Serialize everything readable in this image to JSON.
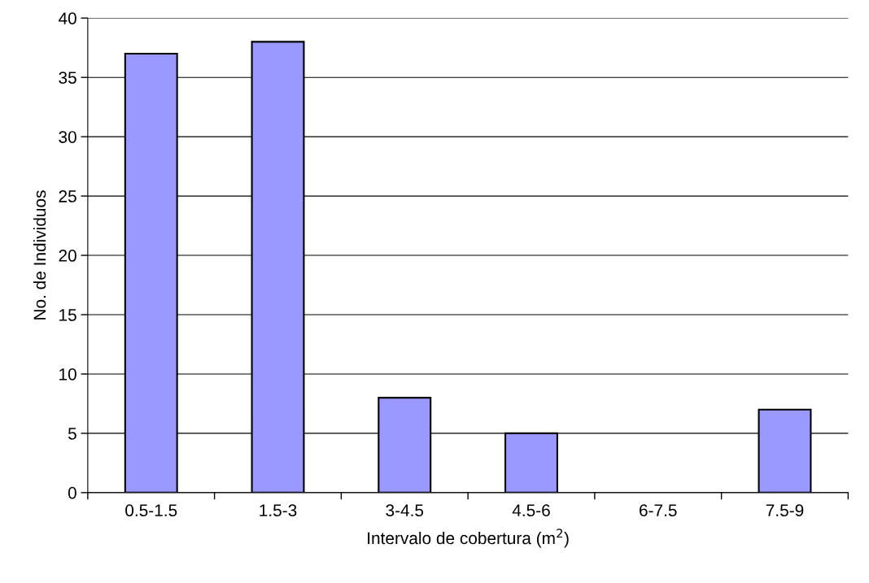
{
  "chart_data": {
    "type": "bar",
    "xlabel": "Intervalo de cobertura (m$^{2}$)",
    "ylabel": "No. de Individuos",
    "categories": [
      "0.5-1.5",
      "1.5-3",
      "3-4.5",
      "4.5-6",
      "6-7.5",
      "7.5-9"
    ],
    "values": [
      37,
      38,
      8,
      5,
      0,
      7
    ],
    "color": "#9999ff",
    "ylim": [
      0,
      40
    ],
    "yticks": [
      0,
      5,
      10,
      15,
      20,
      25,
      30,
      35,
      40
    ],
    "grid": "y"
  }
}
